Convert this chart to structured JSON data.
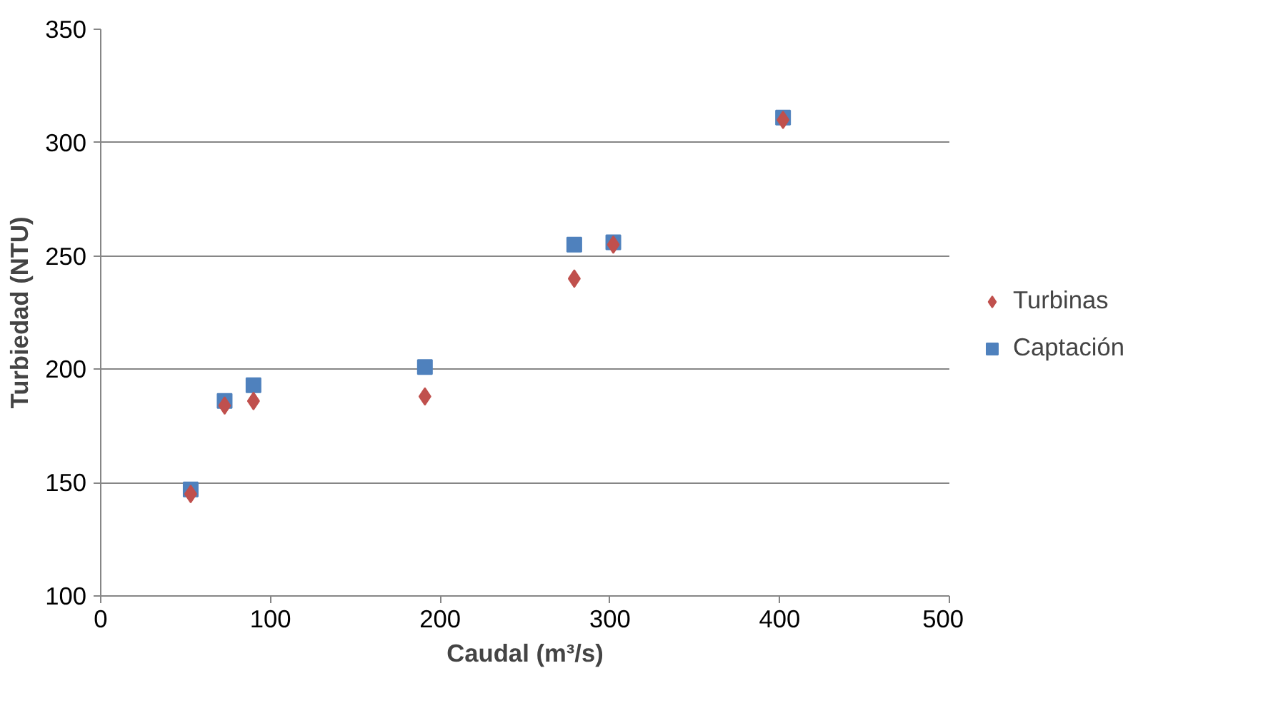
{
  "chart_data": {
    "type": "scatter",
    "xlabel": "Caudal (m³/s)",
    "ylabel": "Turbiedad (NTU)",
    "xlim": [
      0,
      500
    ],
    "xticks": [
      0,
      100,
      200,
      300,
      400,
      500
    ],
    "ylim": [
      100,
      350
    ],
    "yticks": [
      100,
      150,
      200,
      250,
      300,
      350
    ],
    "grid": "y",
    "legend": "right",
    "series": [
      {
        "name": "Turbinas",
        "color": "#c0504d",
        "marker": "diamond",
        "x": [
          53,
          73,
          90,
          191,
          279,
          302,
          402
        ],
        "values": [
          145,
          184,
          186,
          188,
          240,
          255,
          310
        ]
      },
      {
        "name": "Captación",
        "color": "#4f81bd",
        "marker": "square",
        "x": [
          53,
          73,
          90,
          191,
          279,
          302,
          402
        ],
        "values": [
          147,
          186,
          193,
          201,
          255,
          256,
          311
        ]
      }
    ]
  }
}
